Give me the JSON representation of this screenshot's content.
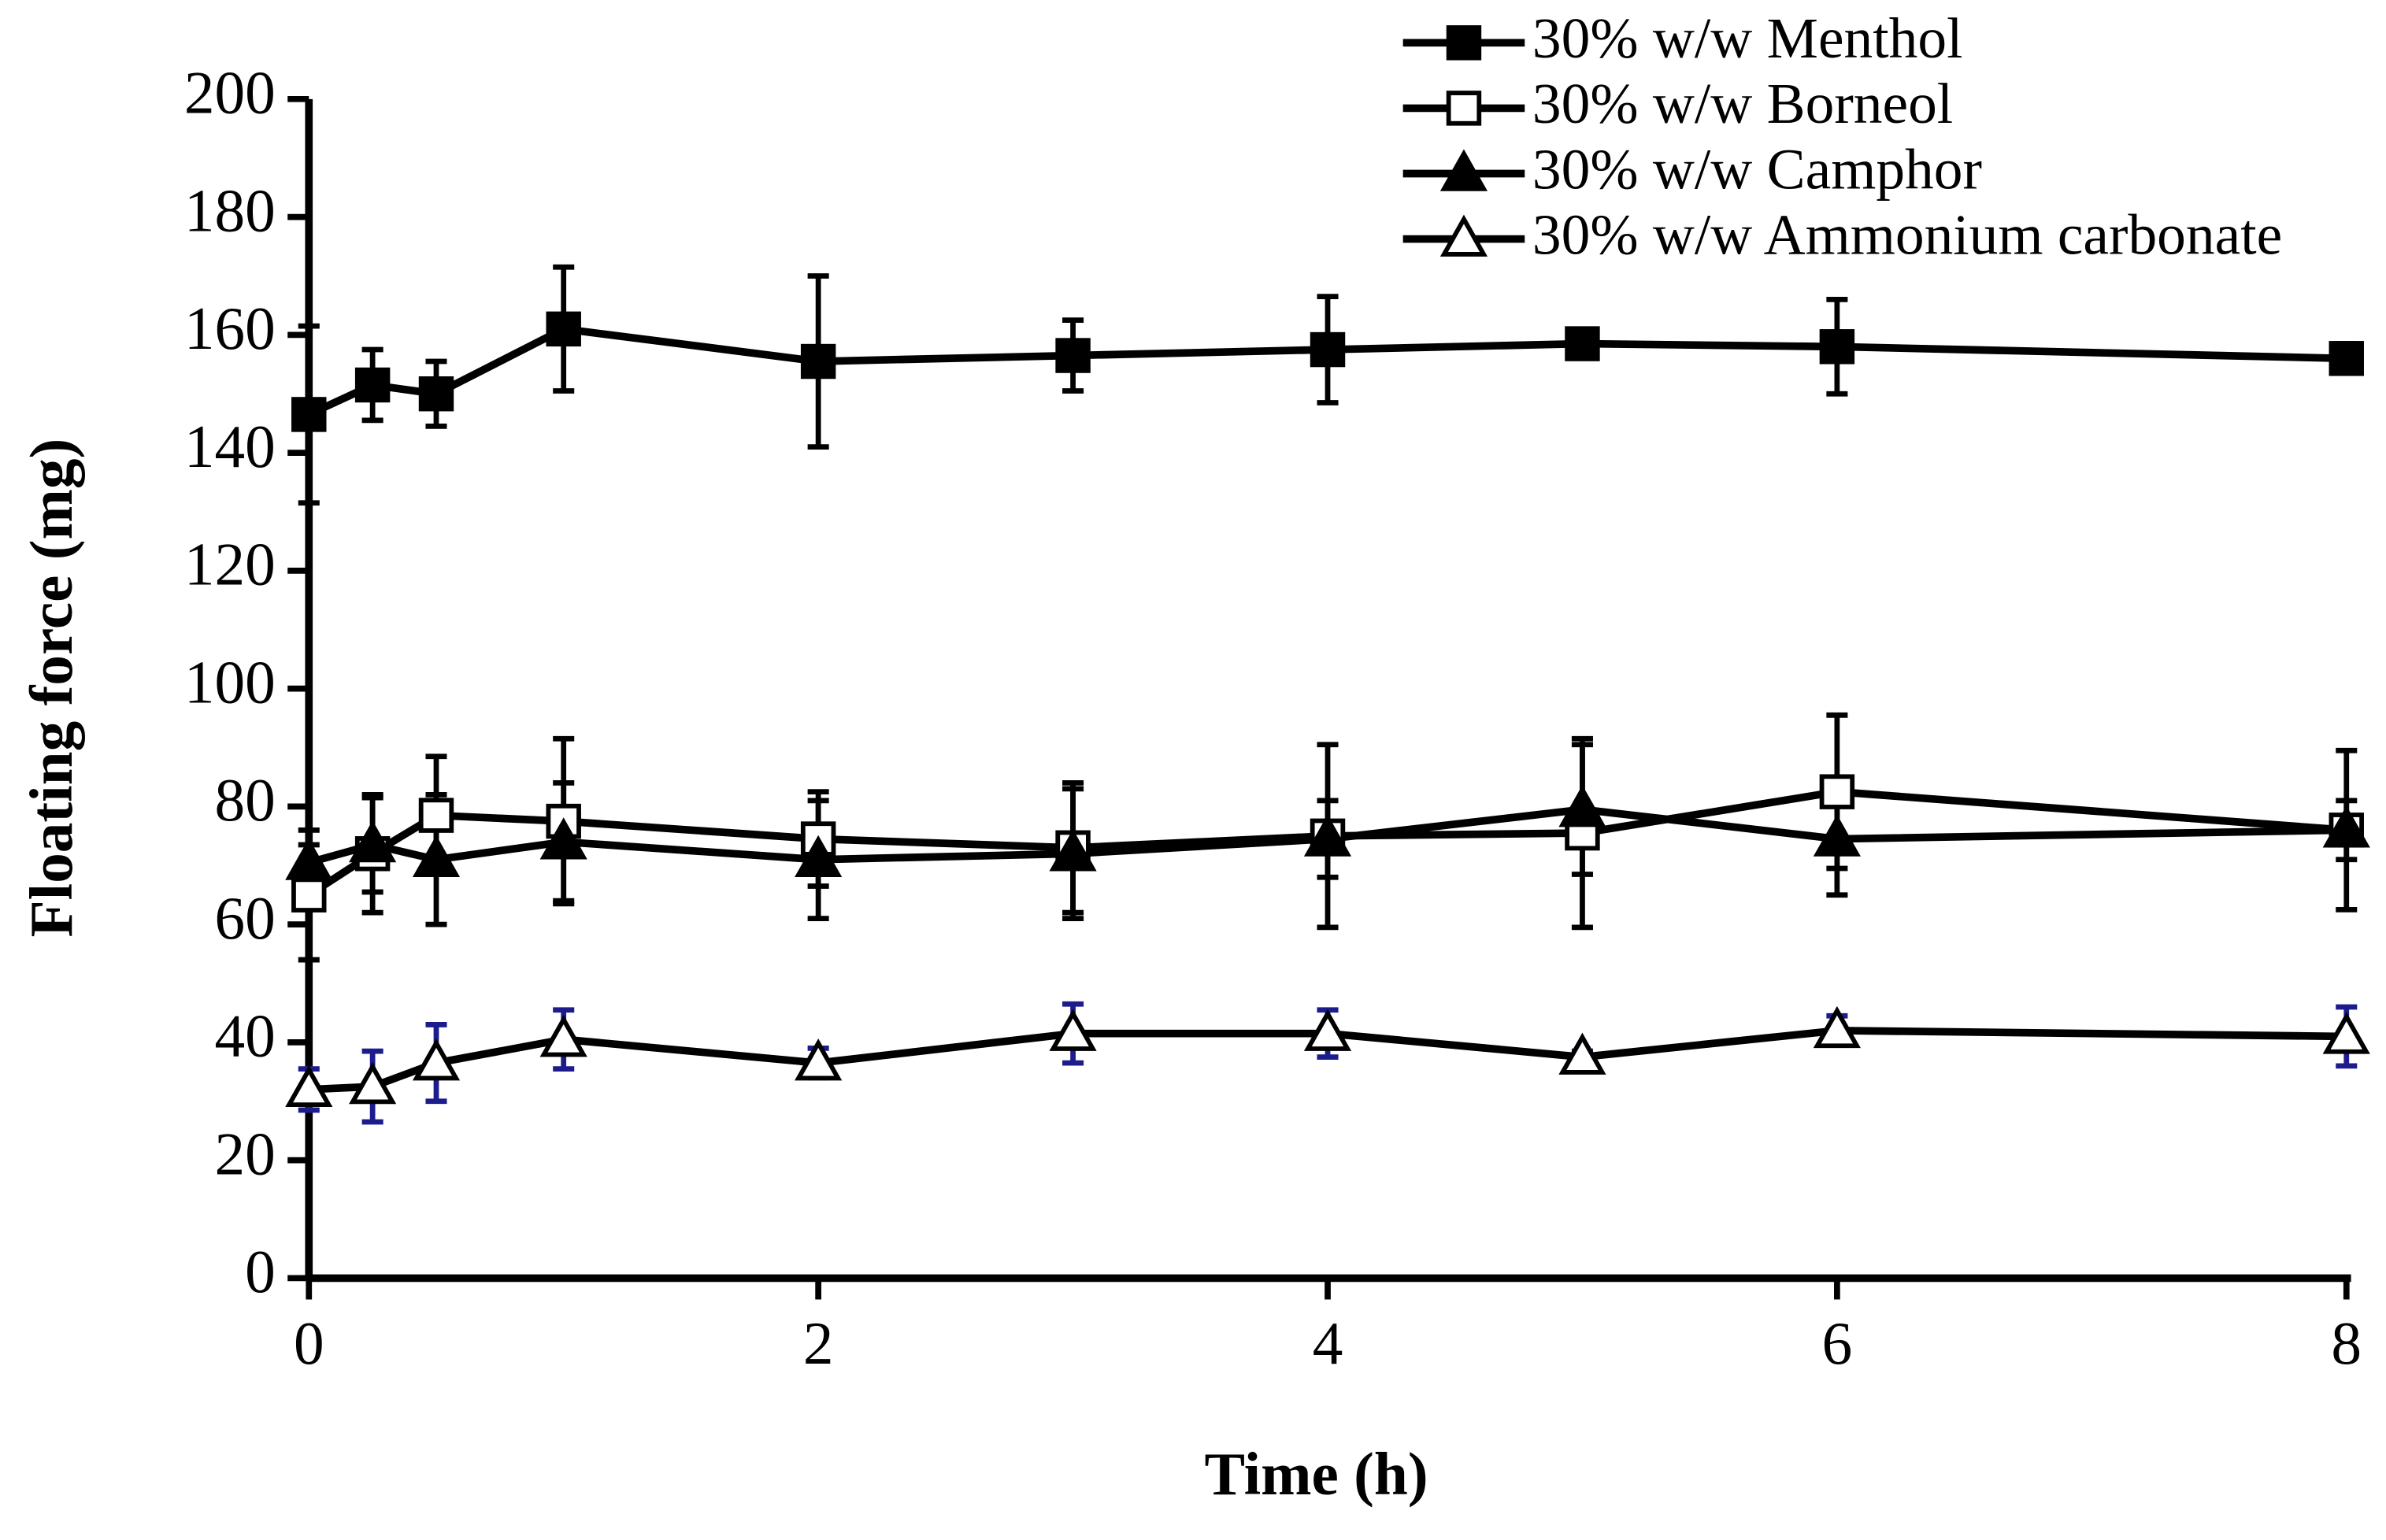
{
  "chart_data": {
    "type": "line",
    "x_label": "Time (h)",
    "y_label": "Floating force (mg)",
    "x": [
      0,
      0.25,
      0.5,
      1,
      2,
      3,
      4,
      5,
      6,
      8
    ],
    "xlim": [
      0,
      8
    ],
    "xticks": [
      0,
      2,
      4,
      6,
      8
    ],
    "ylim": [
      0,
      200
    ],
    "yticks": [
      0,
      20,
      40,
      60,
      80,
      100,
      120,
      140,
      160,
      180,
      200
    ],
    "legend": "top-right",
    "series": [
      {
        "name": "30% w/w Menthol",
        "color": "#000000",
        "marker": "square",
        "filled": true,
        "error_color": "#000000",
        "values": [
          146.5,
          151.5,
          150,
          161,
          155.5,
          156.5,
          157.5,
          158.5,
          158,
          156
        ],
        "errors": [
          15,
          6,
          5.5,
          10.5,
          14.5,
          6,
          9,
          2,
          8,
          2.5
        ]
      },
      {
        "name": "30% w/w Borneol",
        "color": "#000000",
        "marker": "square",
        "filled": false,
        "error_color": "#000000",
        "values": [
          65,
          72,
          78.5,
          77.5,
          74.5,
          73,
          75,
          75.5,
          82.5,
          76
        ],
        "errors": [
          11,
          10,
          10,
          14,
          8,
          11,
          15.5,
          16,
          13,
          13.5
        ]
      },
      {
        "name": "30% w/w Camphor",
        "color": "#000000",
        "marker": "triangle",
        "filled": true,
        "error_color": "#000000",
        "values": [
          70.5,
          73.5,
          71,
          74,
          71,
          72,
          74.5,
          79.5,
          74.5,
          76
        ],
        "errors": [
          3,
          8,
          11,
          10,
          10,
          11,
          6.5,
          11,
          9.5,
          5
        ]
      },
      {
        "name": "30% w/w Ammonium carbonate",
        "color": "#000000",
        "marker": "triangle",
        "filled": false,
        "error_color": "#1c1c8c",
        "values": [
          32,
          32.5,
          36.5,
          40.5,
          36.5,
          41.5,
          41.5,
          37.5,
          42,
          41
        ],
        "errors": [
          3.5,
          6,
          6.5,
          5,
          2.5,
          5,
          4,
          1,
          2.5,
          5
        ]
      }
    ]
  }
}
